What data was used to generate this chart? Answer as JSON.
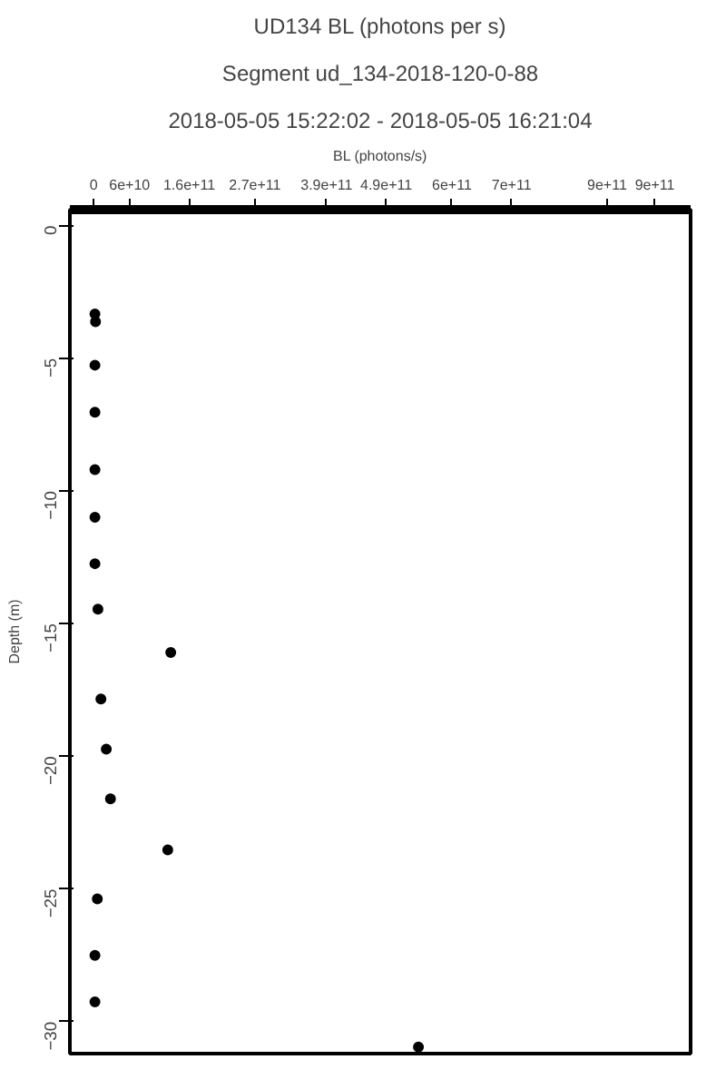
{
  "chart_data": {
    "type": "scatter",
    "title": "UD134 BL (photons per s)",
    "subtitle": "Segment ud_134-2018-120-0-88",
    "annotations": [
      "2018-05-05 15:22:02 - 2018-05-05 16:21:04"
    ],
    "xlabel": "BL (photons/s)",
    "ylabel": "Depth (m)",
    "x": [
      2000000000.0,
      3000000000.0,
      2000000000.0,
      2000000000.0,
      2000000000.0,
      2000000000.0,
      2000000000.0,
      7000000000.0,
      129000000000.0,
      12000000000.0,
      21000000000.0,
      28000000000.0,
      124000000000.0,
      6000000000.0,
      2000000000.0,
      2000000000.0,
      544000000000.0
    ],
    "series": [
      {
        "color": "#000000",
        "values": [
          -3.33,
          -3.62,
          -5.26,
          -7.03,
          -9.2,
          -10.99,
          -12.74,
          -14.45,
          -16.09,
          -17.84,
          -19.73,
          -21.6,
          -23.52,
          -25.37,
          -27.5,
          -29.25,
          -30.95
        ]
      }
    ],
    "xlim": [
      -40000000000.0,
      1000000000000.0
    ],
    "ylim": [
      -31.2,
      0.6
    ],
    "xticks": [
      {
        "value": 0,
        "label": "0"
      },
      {
        "value": 60000000000.0,
        "label": "6e+10"
      },
      {
        "value": 160000000000.0,
        "label": "1.6e+11"
      },
      {
        "value": 270000000000.0,
        "label": "2.7e+11"
      },
      {
        "value": 390000000000.0,
        "label": "3.9e+11"
      },
      {
        "value": 490000000000.0,
        "label": "4.9e+11"
      },
      {
        "value": 600000000000.0,
        "label": "6e+11"
      },
      {
        "value": 700000000000.0,
        "label": "7e+11"
      },
      {
        "value": 860000000000.0,
        "label": "9e+11"
      },
      {
        "value": 940000000000.0,
        "label": "9e+11"
      }
    ],
    "yticks": [
      0,
      -5,
      -10,
      -15,
      -20,
      -25,
      -30
    ],
    "grid": false,
    "marker": "circle"
  }
}
